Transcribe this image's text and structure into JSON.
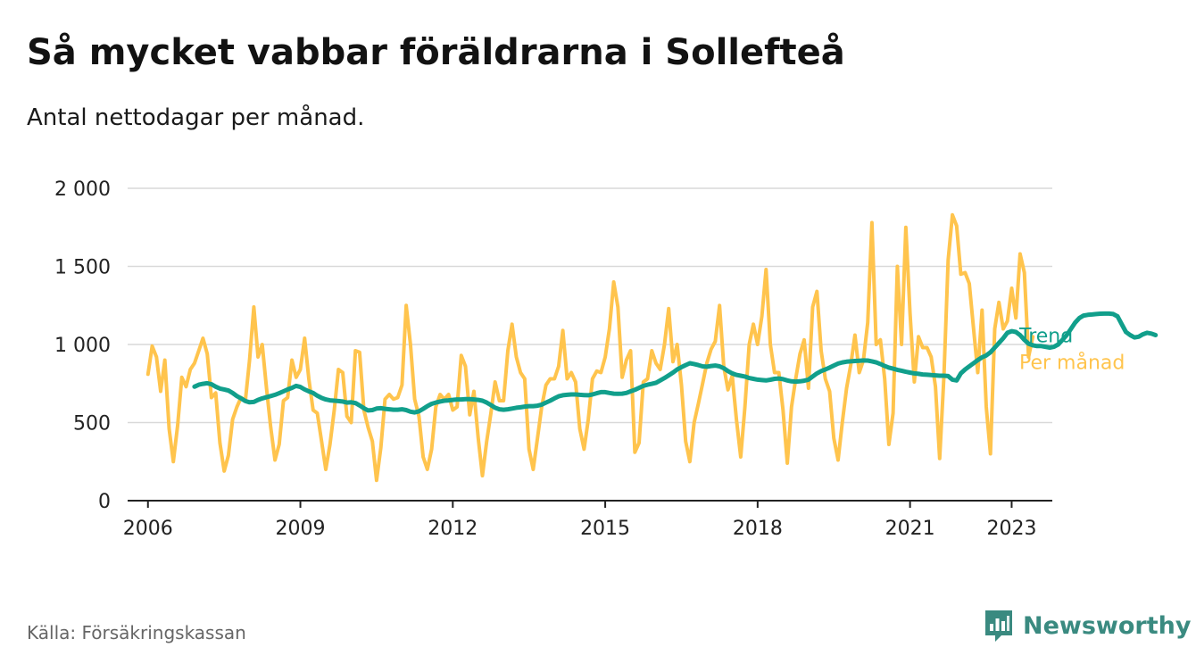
{
  "title": "Så mycket vabbar föräldrarna i Sollefteå",
  "subtitle": "Antal nettodagar per månad.",
  "source": "Källa: Försäkringskassan",
  "brand": {
    "name": "Newsworthy",
    "icon": "newsworthy-logo-icon",
    "color": "#3a8a80"
  },
  "chart_data": {
    "type": "line",
    "x_ticks": [
      "2006",
      "2009",
      "2012",
      "2015",
      "2018",
      "2021",
      "2023"
    ],
    "y_ticks": [
      "0",
      "500",
      "1 000",
      "1 500",
      "2 000"
    ],
    "ylim": [
      0,
      2000
    ],
    "grid": true,
    "legend_placement": "right, at line ends",
    "series": [
      {
        "name": "Per månad",
        "color": "#ffc44d",
        "start": "2006-01",
        "values": [
          810,
          990,
          920,
          700,
          900,
          460,
          250,
          480,
          790,
          730,
          840,
          880,
          960,
          1040,
          940,
          660,
          690,
          370,
          190,
          290,
          520,
          600,
          660,
          640,
          900,
          1240,
          920,
          1000,
          720,
          470,
          260,
          360,
          640,
          660,
          900,
          790,
          840,
          1040,
          780,
          580,
          560,
          380,
          200,
          360,
          580,
          840,
          820,
          540,
          500,
          960,
          950,
          580,
          470,
          380,
          130,
          340,
          650,
          680,
          650,
          660,
          740,
          1250,
          1000,
          650,
          540,
          280,
          200,
          330,
          600,
          680,
          650,
          680,
          580,
          600,
          930,
          860,
          550,
          700,
          400,
          160,
          380,
          560,
          760,
          640,
          640,
          960,
          1130,
          920,
          820,
          780,
          330,
          200,
          400,
          600,
          740,
          780,
          780,
          860,
          1090,
          780,
          820,
          760,
          460,
          330,
          520,
          780,
          830,
          820,
          920,
          1100,
          1400,
          1240,
          790,
          900,
          960,
          310,
          370,
          760,
          780,
          960,
          880,
          840,
          1000,
          1230,
          890,
          1000,
          740,
          380,
          250,
          500,
          620,
          750,
          880,
          970,
          1020,
          1250,
          860,
          710,
          800,
          520,
          280,
          600,
          1000,
          1130,
          1000,
          1180,
          1480,
          1000,
          820,
          820,
          580,
          240,
          600,
          780,
          940,
          1030,
          720,
          1240,
          1340,
          960,
          780,
          700,
          400,
          260,
          500,
          720,
          870,
          1060,
          820,
          900,
          1140,
          1780,
          1000,
          1030,
          780,
          360,
          560,
          1500,
          1000,
          1750,
          1200,
          760,
          1050,
          980,
          980,
          920,
          730,
          270,
          800,
          1540,
          1830,
          1760,
          1450,
          1460,
          1390,
          1100,
          820,
          1220,
          600,
          300,
          1100,
          1270,
          1100,
          1150,
          1360,
          1170,
          1580,
          1460,
          920,
          1050
        ]
      },
      {
        "name": "Trend",
        "color": "#119f8b",
        "start": "2006-12",
        "values": [
          730,
          742,
          748,
          752,
          745,
          730,
          718,
          712,
          705,
          690,
          670,
          655,
          638,
          630,
          632,
          645,
          655,
          662,
          670,
          678,
          688,
          700,
          712,
          722,
          735,
          728,
          712,
          700,
          690,
          672,
          658,
          648,
          642,
          640,
          638,
          635,
          628,
          630,
          625,
          610,
          592,
          578,
          580,
          590,
          592,
          588,
          585,
          582,
          582,
          585,
          580,
          570,
          565,
          572,
          588,
          605,
          620,
          628,
          635,
          640,
          642,
          645,
          648,
          648,
          650,
          650,
          648,
          645,
          640,
          628,
          612,
          595,
          585,
          582,
          585,
          590,
          595,
          598,
          602,
          605,
          605,
          608,
          615,
          628,
          640,
          655,
          668,
          675,
          678,
          680,
          680,
          678,
          676,
          675,
          680,
          688,
          695,
          695,
          690,
          685,
          684,
          685,
          690,
          700,
          710,
          722,
          735,
          742,
          748,
          755,
          770,
          785,
          802,
          820,
          840,
          855,
          868,
          880,
          875,
          868,
          860,
          858,
          862,
          865,
          860,
          848,
          830,
          815,
          805,
          800,
          795,
          785,
          780,
          775,
          772,
          770,
          774,
          780,
          782,
          778,
          770,
          764,
          762,
          764,
          768,
          775,
          795,
          815,
          830,
          840,
          852,
          865,
          878,
          885,
          890,
          892,
          894,
          896,
          898,
          897,
          892,
          885,
          875,
          862,
          852,
          845,
          838,
          832,
          825,
          820,
          815,
          812,
          808,
          806,
          804,
          802,
          800,
          800,
          798,
          775,
          770,
          815,
          840,
          860,
          880,
          900,
          918,
          930,
          950,
          980,
          1010,
          1040,
          1075,
          1085,
          1080,
          1060,
          1030,
          1005,
          995,
          990,
          990,
          985,
          980,
          985,
          1000,
          1030,
          1060,
          1100,
          1140,
          1170,
          1185,
          1190,
          1192,
          1195,
          1197,
          1198,
          1198,
          1195,
          1180,
          1130,
          1080,
          1060,
          1045,
          1050,
          1065,
          1075,
          1070,
          1060
        ]
      }
    ]
  }
}
